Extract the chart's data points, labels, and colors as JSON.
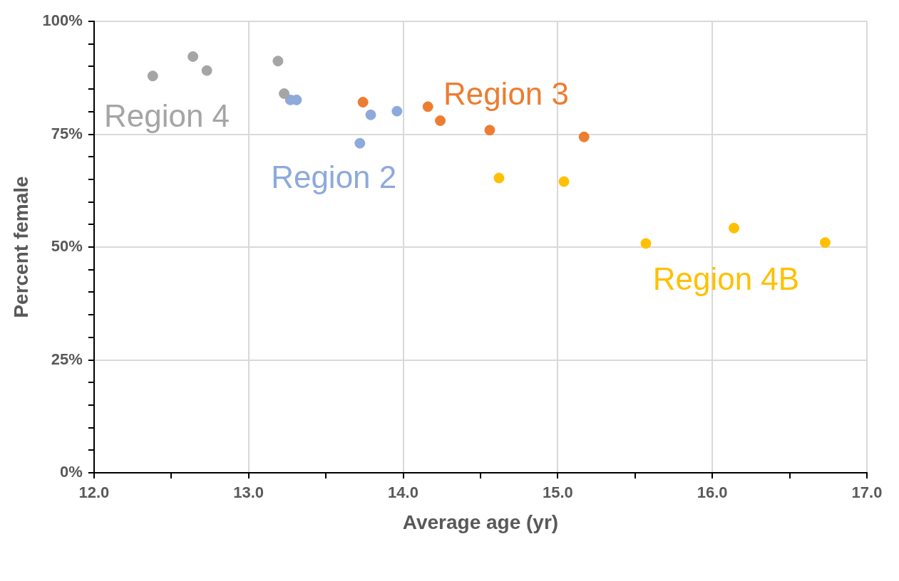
{
  "chart_data": {
    "type": "scatter",
    "xlabel": "Average age (yr)",
    "ylabel": "Percent female",
    "xlim": [
      12,
      17
    ],
    "ylim": [
      0,
      100
    ],
    "xticks": [
      {
        "value": 12,
        "label": "12.0"
      },
      {
        "value": 12.5,
        "label": null
      },
      {
        "value": 13,
        "label": "13.0"
      },
      {
        "value": 13.5,
        "label": null
      },
      {
        "value": 14,
        "label": "14.0"
      },
      {
        "value": 14.5,
        "label": null
      },
      {
        "value": 15,
        "label": "15.0"
      },
      {
        "value": 15.5,
        "label": null
      },
      {
        "value": 16,
        "label": "16.0"
      },
      {
        "value": 16.5,
        "label": null
      },
      {
        "value": 17,
        "label": "17.0"
      }
    ],
    "yticks": [
      {
        "value": 0,
        "label": "0%"
      },
      {
        "value": 5,
        "label": null
      },
      {
        "value": 10,
        "label": null
      },
      {
        "value": 15,
        "label": null
      },
      {
        "value": 20,
        "label": null
      },
      {
        "value": 25,
        "label": "25%"
      },
      {
        "value": 30,
        "label": null
      },
      {
        "value": 35,
        "label": null
      },
      {
        "value": 40,
        "label": null
      },
      {
        "value": 45,
        "label": null
      },
      {
        "value": 50,
        "label": "50%"
      },
      {
        "value": 55,
        "label": null
      },
      {
        "value": 60,
        "label": null
      },
      {
        "value": 65,
        "label": null
      },
      {
        "value": 70,
        "label": null
      },
      {
        "value": 75,
        "label": "75%"
      },
      {
        "value": 80,
        "label": null
      },
      {
        "value": 85,
        "label": null
      },
      {
        "value": 90,
        "label": null
      },
      {
        "value": 95,
        "label": null
      },
      {
        "value": 100,
        "label": "100%"
      }
    ],
    "grid": true,
    "legend": false,
    "marker": "circle",
    "series": [
      {
        "name": "Region 4",
        "color": "#a5a5a5",
        "x": [
          12.38,
          12.64,
          12.73,
          13.19,
          13.23
        ],
        "values": [
          87.9,
          92.2,
          89.1,
          91.2,
          84.0
        ]
      },
      {
        "name": "Region 2",
        "color": "#8eaadb",
        "x": [
          13.27,
          13.31,
          13.79,
          13.96,
          13.72
        ],
        "values": [
          82.6,
          82.6,
          79.3,
          80.1,
          73.0
        ]
      },
      {
        "name": "Region 3",
        "color": "#ed7d31",
        "x": [
          13.74,
          14.16,
          14.24,
          14.56,
          15.17
        ],
        "values": [
          82.1,
          81.1,
          78.0,
          75.9,
          74.4
        ]
      },
      {
        "name": "Region 4B",
        "color": "#ffc000",
        "x": [
          14.62,
          15.04,
          15.57,
          16.14,
          16.73
        ],
        "values": [
          65.3,
          64.5,
          50.8,
          54.2,
          51.0
        ]
      }
    ]
  }
}
